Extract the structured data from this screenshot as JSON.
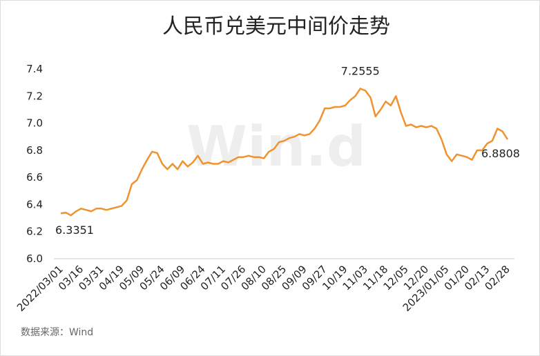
{
  "chart_data": {
    "type": "line",
    "title": "人民币兑美元中间价走势",
    "source": "数据来源：Wind",
    "watermark": "Win.d",
    "categories": [
      "2022/03/01",
      null,
      null,
      null,
      "03/16",
      null,
      null,
      null,
      "03/31",
      null,
      null,
      null,
      "04/19",
      null,
      null,
      null,
      "05/09",
      null,
      null,
      null,
      "05/24",
      null,
      null,
      null,
      "06/09",
      null,
      null,
      null,
      "06/24",
      null,
      null,
      null,
      "07/11",
      null,
      null,
      null,
      "07/26",
      null,
      null,
      null,
      "08/10",
      null,
      null,
      null,
      "08/25",
      null,
      null,
      null,
      "09/09",
      null,
      null,
      null,
      "09/27",
      null,
      null,
      null,
      "10/19",
      null,
      null,
      null,
      "11/03",
      null,
      null,
      null,
      "11/18",
      null,
      null,
      null,
      "12/05",
      null,
      null,
      null,
      "12/20",
      null,
      null,
      null,
      "2023/01/05",
      null,
      null,
      null,
      "01/20",
      null,
      null,
      null,
      "02/13",
      null,
      null,
      null,
      "02/28"
    ],
    "series": [
      {
        "name": "人民币兑美元中间价",
        "color": "#f0922e",
        "values": [
          6.3351,
          6.34,
          6.32,
          6.35,
          6.37,
          6.36,
          6.35,
          6.37,
          6.37,
          6.36,
          6.37,
          6.38,
          6.39,
          6.43,
          6.55,
          6.58,
          6.66,
          6.73,
          6.79,
          6.78,
          6.7,
          6.66,
          6.7,
          6.66,
          6.72,
          6.68,
          6.71,
          6.76,
          6.7,
          6.71,
          6.7,
          6.7,
          6.72,
          6.71,
          6.73,
          6.75,
          6.75,
          6.76,
          6.75,
          6.75,
          6.74,
          6.79,
          6.81,
          6.86,
          6.87,
          6.89,
          6.9,
          6.92,
          6.91,
          6.92,
          6.96,
          7.02,
          7.11,
          7.11,
          7.12,
          7.12,
          7.13,
          7.17,
          7.2,
          7.2555,
          7.24,
          7.19,
          7.05,
          7.1,
          7.16,
          7.13,
          7.2,
          7.08,
          6.98,
          6.99,
          6.97,
          6.98,
          6.97,
          6.98,
          6.96,
          6.88,
          6.77,
          6.72,
          6.77,
          6.76,
          6.75,
          6.73,
          6.8,
          6.8,
          6.85,
          6.87,
          6.96,
          6.94,
          6.8808
        ],
        "value_labels": [
          "6.3351",
          null,
          null,
          null,
          null,
          null,
          null,
          null,
          null,
          null,
          null,
          null,
          null,
          null,
          null,
          null,
          null,
          null,
          null,
          null,
          null,
          null,
          null,
          null,
          null,
          null,
          null,
          null,
          null,
          null,
          null,
          null,
          null,
          null,
          null,
          null,
          null,
          null,
          null,
          null,
          null,
          null,
          null,
          null,
          null,
          null,
          null,
          null,
          null,
          null,
          null,
          null,
          null,
          null,
          null,
          null,
          null,
          null,
          null,
          "7.2555",
          null,
          null,
          null,
          null,
          null,
          null,
          null,
          null,
          null,
          null,
          null,
          null,
          null,
          null,
          null,
          null,
          null,
          null,
          null,
          null,
          null,
          null,
          null,
          null,
          null,
          null,
          null,
          null,
          "6.8808"
        ]
      }
    ],
    "ylim": [
      6.0,
      7.4
    ],
    "yticks": [
      {
        "value": 6,
        "label": "6.0"
      },
      6.2,
      6.4,
      6.6,
      6.8,
      {
        "value": 7,
        "label": "7.0"
      },
      7.2,
      7.4
    ],
    "grid": false
  }
}
